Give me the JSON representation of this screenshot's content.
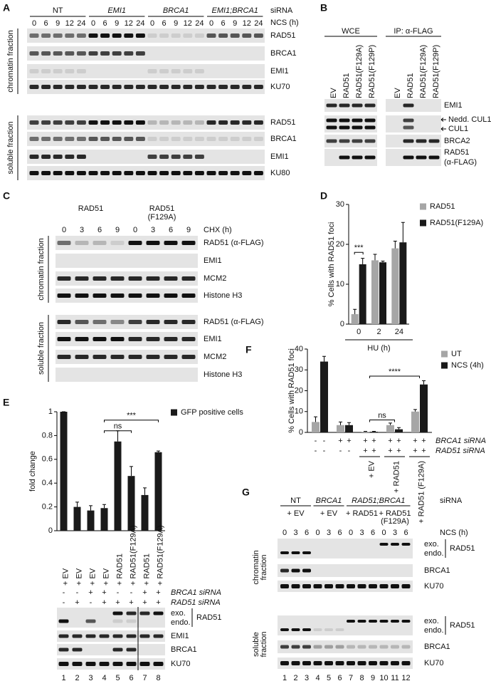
{
  "panel_labels": [
    "A",
    "B",
    "C",
    "D",
    "E",
    "F",
    "G"
  ],
  "panel_a": {
    "groups": [
      "NT",
      "EMI1",
      "BRCA1",
      "EMI1;BRCA1"
    ],
    "sirna_label": "siRNA",
    "time_label": "NCS (h)",
    "times": [
      0,
      6,
      9,
      12,
      24
    ],
    "fractions": [
      {
        "name": [
          "chromatin fraction"
        ],
        "rows": [
          "RAD51",
          "BRCA1",
          "EMI1",
          "KU70"
        ]
      },
      {
        "name": [
          "soluble fraction"
        ],
        "rows": [
          "RAD51",
          "BRCA1",
          "EMI1",
          "KU80"
        ]
      }
    ]
  },
  "panel_b": {
    "sections": [
      "WCE",
      "IP: α-FLAG"
    ],
    "lanes": [
      "EV",
      "RAD51",
      "RAD51(F129A)",
      "RAD51(F129P)"
    ],
    "rows": [
      [
        "EMI1"
      ],
      [
        "Nedd. CUL1"
      ],
      [
        "CUL1"
      ],
      [
        "BRCA2"
      ],
      [
        "RAD51",
        "(α-FLAG)"
      ]
    ]
  },
  "panel_c": {
    "groups": [
      [
        "RAD51"
      ],
      [
        "RAD51",
        "(F129A)"
      ]
    ],
    "time_label": "CHX (h)",
    "times": [
      0,
      3,
      6,
      9
    ],
    "fractions": [
      {
        "name": [
          "chromatin fraction"
        ],
        "rows": [
          "RAD51 (α-FLAG)",
          "EMI1",
          "MCM2",
          "Histone H3"
        ]
      },
      {
        "name": [
          "soluble fraction"
        ],
        "rows": [
          "RAD51 (α-FLAG)",
          "EMI1",
          "MCM2",
          "Histone H3"
        ]
      }
    ]
  },
  "panel_e_blot": {
    "rows": [
      "exo.",
      "endo.",
      "RAD51",
      "EMI1",
      "BRCA1",
      "KU70"
    ],
    "lanes": [
      1,
      2,
      3,
      4,
      5,
      6,
      7,
      8
    ]
  },
  "panel_g": {
    "groups": [
      "NT",
      "BRCA1",
      "RAD51;BRCA1"
    ],
    "sirna_label": "siRNA",
    "rescue": [
      [
        "+ EV"
      ],
      [
        "+ EV"
      ],
      [
        "+ RAD51"
      ],
      [
        "+ RAD51",
        "(F129A)"
      ]
    ],
    "time_label": "NCS (h)",
    "times": [
      0,
      3,
      6
    ],
    "fractions": [
      {
        "name": [
          "chromatin",
          "fraction"
        ],
        "rows": [
          "exo.",
          "endo.",
          "RAD51",
          "BRCA1",
          "KU70"
        ]
      },
      {
        "name": [
          "soluble",
          "fraction"
        ],
        "rows": [
          "exo.",
          "endo.",
          "RAD51",
          "BRCA1",
          "KU70"
        ]
      }
    ],
    "lanes": [
      1,
      2,
      3,
      4,
      5,
      6,
      7,
      8,
      9,
      10,
      11,
      12
    ]
  },
  "chart_data": [
    {
      "type": "bar",
      "ylabel": "% Cells with RAD51 foci",
      "xlabel": "HU (h)",
      "categories": [
        0,
        2,
        24
      ],
      "series": [
        {
          "name": "RAD51",
          "color": "#a6a6a6",
          "values": [
            2.5,
            16,
            19
          ],
          "errors": [
            1.2,
            1.5,
            1.8
          ]
        },
        {
          "name": "RAD51(F129A)",
          "color": "#1a1a1a",
          "values": [
            15,
            15.5,
            20.5
          ],
          "errors": [
            1.5,
            0.3,
            5
          ]
        }
      ],
      "ylim": [
        0,
        30
      ],
      "yticks": [
        0,
        10,
        20,
        30
      ],
      "annotations": [
        "***"
      ],
      "legend": "right"
    },
    {
      "type": "bar",
      "ylabel": "fold change",
      "categories": [
        "+ EV",
        "+ EV",
        "+ EV",
        "+ EV",
        "+ RAD51",
        "+ RAD51(F129A)",
        "+ RAD51",
        "+ RAD51(F129A)"
      ],
      "series": [
        {
          "name": "GFP positive cells",
          "color": "#1a1a1a",
          "values": [
            1,
            0.2,
            0.17,
            0.19,
            0.75,
            0.46,
            0.3,
            0.66
          ],
          "errors": [
            0,
            0.04,
            0.04,
            0.03,
            0.09,
            0.08,
            0.06,
            0.01
          ]
        }
      ],
      "ylim": [
        0,
        1
      ],
      "yticks": [
        0,
        0.2,
        0.4,
        0.6,
        0.8,
        1
      ],
      "annotations": [
        "***",
        "ns"
      ],
      "legend": "right",
      "conditions": [
        {
          "name": "BRCA1 siRNA",
          "values": [
            "-",
            "-",
            "+",
            "+",
            "-",
            "-",
            "+",
            "+"
          ]
        },
        {
          "name": "RAD51 siRNA",
          "values": [
            "-",
            "+",
            "-",
            "+",
            "+",
            "+",
            "+",
            "+"
          ]
        }
      ]
    },
    {
      "type": "bar",
      "ylabel": "% Cells with RAD51 foci",
      "categories": [
        null,
        null,
        "+ EV",
        "+ RAD51",
        "+ RAD51 (F129A)"
      ],
      "series": [
        {
          "name": "UT",
          "color": "#a6a6a6",
          "values": [
            5,
            3.5,
            0.3,
            3.5,
            10
          ],
          "errors": [
            2.5,
            1.5,
            0.2,
            1,
            1
          ]
        },
        {
          "name": "NCS (4h)",
          "color": "#1a1a1a",
          "values": [
            34,
            3.5,
            0.3,
            1.5,
            23
          ],
          "errors": [
            2.5,
            1.2,
            0.2,
            0.8,
            1.8
          ]
        }
      ],
      "ylim": [
        0,
        40
      ],
      "yticks": [
        0,
        10,
        20,
        30,
        40
      ],
      "annotations": [
        "****",
        "ns"
      ],
      "legend": "upper right",
      "conditions": [
        {
          "name": "BRCA1 siRNA",
          "values": [
            "-",
            "+",
            "+",
            "+",
            "+"
          ]
        },
        {
          "name": "RAD51 siRNA",
          "values": [
            "-",
            "-",
            "+",
            "+",
            "+"
          ]
        }
      ]
    }
  ]
}
